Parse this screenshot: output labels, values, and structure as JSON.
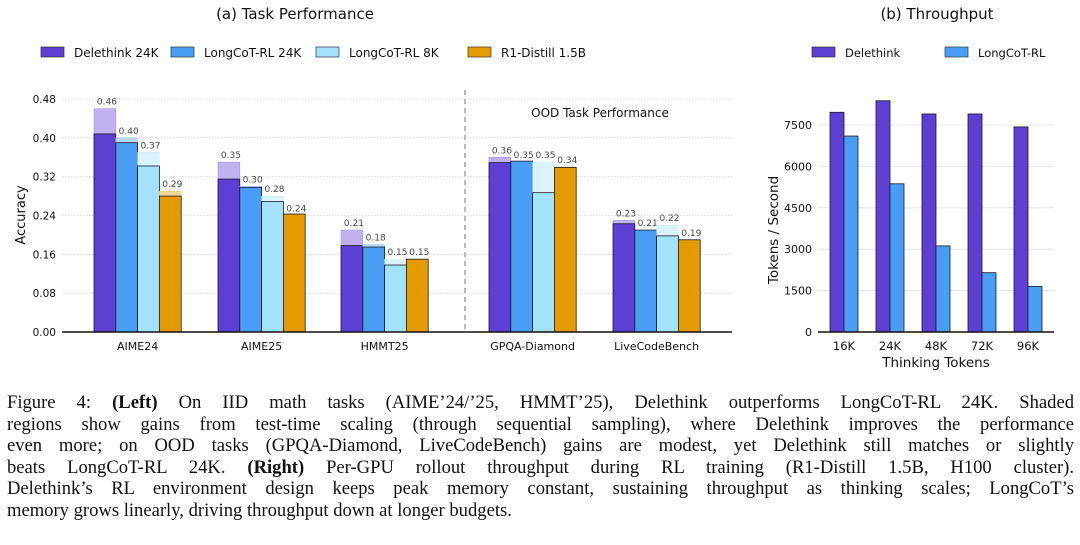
{
  "chart_data": [
    {
      "type": "bar",
      "title": "(a) Task Performance",
      "ylabel": "Accuracy",
      "xlabel": "",
      "ylim": [
        0,
        0.48
      ],
      "yticks": [
        "0.00",
        "0.08",
        "0.16",
        "0.24",
        "0.32",
        "0.40",
        "0.48"
      ],
      "grid": true,
      "legend_position": "top",
      "annotation": "OOD Task Performance",
      "categories": [
        "AIME24",
        "AIME25",
        "HMMT25",
        "GPQA-Diamond",
        "LiveCodeBench"
      ],
      "series": [
        {
          "name": "Delethink 24K",
          "color": "#5e3fd4",
          "values": [
            0.408,
            0.315,
            0.178,
            0.349,
            0.223
          ],
          "scaled_values": [
            0.46,
            0.35,
            0.21,
            0.36,
            0.23
          ],
          "labels": [
            "0.46",
            "0.35",
            "0.21",
            "0.36",
            "0.23"
          ]
        },
        {
          "name": "LongCoT-RL 24K",
          "color": "#4a9df5",
          "values": [
            0.39,
            0.298,
            0.175,
            0.352,
            0.21
          ],
          "scaled_values": [
            0.4,
            0.3,
            0.18,
            0.35,
            0.21
          ],
          "labels": [
            "0.40",
            "0.30",
            "0.18",
            "0.35",
            "0.21"
          ]
        },
        {
          "name": "LongCoT-RL 8K",
          "color": "#a3e2fb",
          "values": [
            0.342,
            0.269,
            0.138,
            0.287,
            0.198
          ],
          "scaled_values": [
            0.37,
            0.28,
            0.15,
            0.35,
            0.22
          ],
          "labels": [
            "0.37",
            "0.28",
            "0.15",
            "0.35",
            "0.22"
          ]
        },
        {
          "name": "R1-Distill 1.5B",
          "color": "#e49b00",
          "values": [
            0.28,
            0.243,
            0.15,
            0.339,
            0.19
          ],
          "scaled_values": [
            0.29,
            0.24,
            0.15,
            0.34,
            0.19
          ],
          "labels": [
            "0.29",
            "0.24",
            "0.15",
            "0.34",
            "0.19"
          ]
        }
      ]
    },
    {
      "type": "bar",
      "title": "(b) Throughput",
      "ylabel": "Tokens / Second",
      "xlabel": "Thinking Tokens",
      "ylim": [
        0,
        8500
      ],
      "yticks": [
        "0",
        "1500",
        "3000",
        "4500",
        "6000",
        "7500"
      ],
      "grid": true,
      "legend_position": "top",
      "categories": [
        "16K",
        "24K",
        "48K",
        "72K",
        "96K"
      ],
      "series": [
        {
          "name": "Delethink",
          "color": "#5e3fd4",
          "values": [
            7960,
            8380,
            7900,
            7900,
            7430
          ]
        },
        {
          "name": "LongCoT-RL",
          "color": "#4a9df5",
          "values": [
            7100,
            5370,
            3120,
            2150,
            1650
          ]
        }
      ]
    }
  ],
  "caption": {
    "lines": [
      {
        "pre": "Figure 4: ",
        "bold": "(Left)",
        "post": " On IID math tasks (AIME’24/’25, HMMT’25), Delethink outperforms LongCoT-RL 24K. Shaded"
      },
      {
        "pre": "regions show gains from test-time scaling (through sequential sampling), where Delethink improves the performance",
        "bold": "",
        "post": ""
      },
      {
        "pre": "even more; on OOD tasks (GPQA-Diamond, LiveCodeBench) gains are modest, yet Delethink still matches or slightly",
        "bold": "",
        "post": ""
      },
      {
        "pre": "beats LongCoT-RL 24K. ",
        "bold": "(Right)",
        "post": " Per-GPU rollout throughput during RL training (R1-Distill 1.5B, H100 cluster)."
      },
      {
        "pre": "Delethink’s RL environment design keeps peak memory constant, sustaining throughput as thinking scales; LongCoT’s",
        "bold": "",
        "post": ""
      },
      {
        "pre": "memory grows linearly, driving throughput down at longer budgets.",
        "bold": "",
        "post": ""
      }
    ]
  }
}
